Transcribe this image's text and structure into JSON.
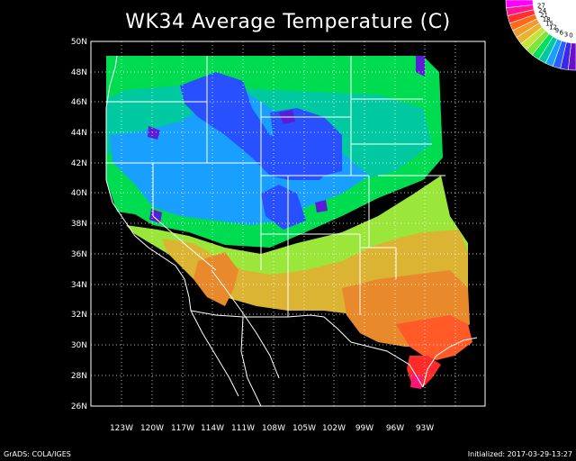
{
  "title": "WK34 Average Temperature (C)",
  "lat_labels": [
    "50N",
    "48N",
    "46N",
    "44N",
    "42N",
    "40N",
    "38N",
    "36N",
    "34N",
    "32N",
    "30N",
    "28N",
    "26N"
  ],
  "lon_labels": [
    "123W",
    "120W",
    "117W",
    "114W",
    "111W",
    "108W",
    "105W",
    "102W",
    "99W",
    "96W",
    "93W"
  ],
  "legend": {
    "levels": [
      "27",
      "24",
      "21",
      "18",
      "15",
      "12",
      "9",
      "6",
      "3",
      "0"
    ],
    "colors": [
      "#ff00ff",
      "#ff1493",
      "#ff3030",
      "#ff6a1a",
      "#f29a2a",
      "#e6b430",
      "#c8e23c",
      "#7ce632",
      "#00e05a",
      "#00c8a0",
      "#19a0ff",
      "#2860ff",
      "#3a28e6",
      "#6a10c8"
    ]
  },
  "footer": {
    "left": "GrADS: COLA/IGES",
    "right": "Initialized: 2017-03-29-13:27"
  },
  "colors": {
    "background": "#000000",
    "cold_purple": "#5a1cd6",
    "blue": "#2850ff",
    "light_blue": "#19a0ff",
    "cyan_green": "#00c8a0",
    "green": "#00dc50",
    "lime": "#9ae63a",
    "yellow_orange": "#dcb434",
    "orange": "#e88a2c",
    "red_orange": "#ff5a28",
    "red": "#ff2a2a",
    "magenta": "#ff1478"
  }
}
